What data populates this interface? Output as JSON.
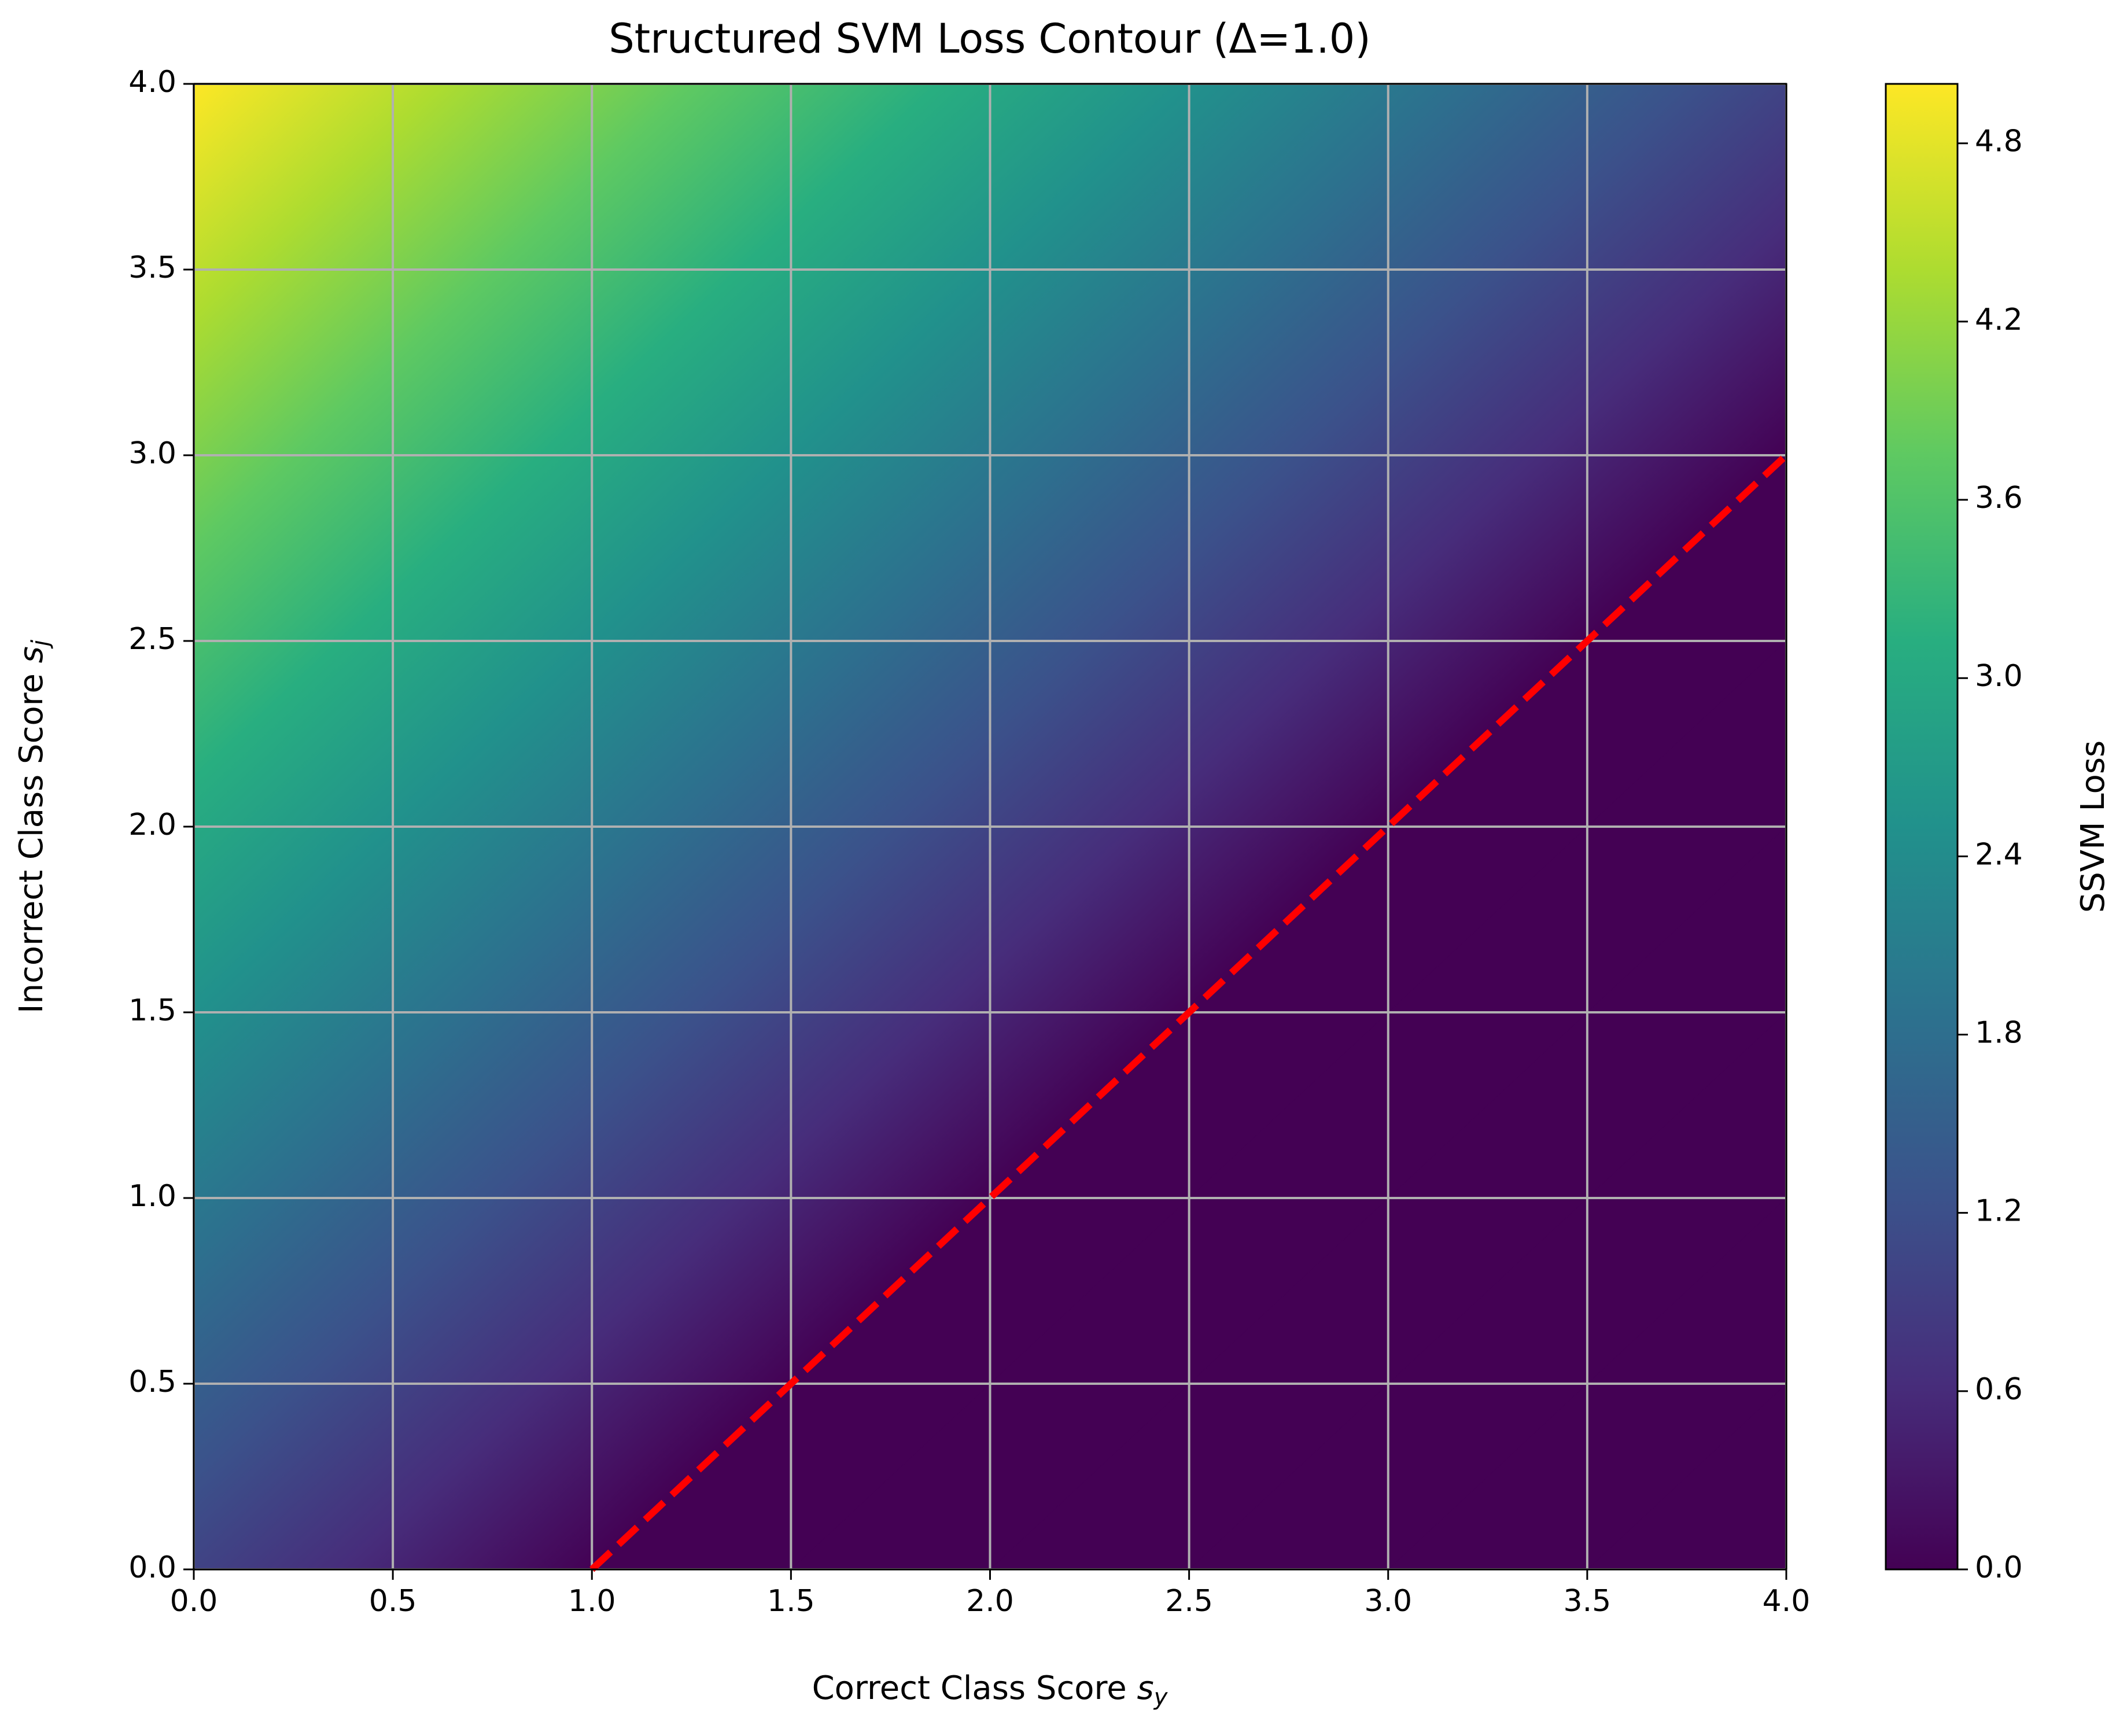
{
  "chart_data": {
    "type": "contourf",
    "title": "Structured SVM Loss Contour (Δ=1.0)",
    "xlabel": "Correct Class Score ",
    "xlabel_symbol": "s",
    "xlabel_subscript": "y",
    "ylabel": "Incorrect Class Score ",
    "ylabel_symbol": "s",
    "ylabel_subscript": "j",
    "colorbar_label": "SSVM Loss",
    "colormap": "viridis",
    "x": [
      0,
      0.5,
      1,
      1.5,
      2,
      2.5,
      3,
      3.5,
      4
    ],
    "y": [
      0,
      0.5,
      1,
      1.5,
      2,
      2.5,
      3,
      3.5,
      4
    ],
    "z": [
      [
        1,
        0.5,
        0,
        0,
        0,
        0,
        0,
        0,
        0
      ],
      [
        1.5,
        1,
        0.5,
        0,
        0,
        0,
        0,
        0,
        0
      ],
      [
        2,
        1.5,
        1,
        0.5,
        0,
        0,
        0,
        0,
        0
      ],
      [
        2.5,
        2,
        1.5,
        1,
        0.5,
        0,
        0,
        0,
        0
      ],
      [
        3,
        2.5,
        2,
        1.5,
        1,
        0.5,
        0,
        0,
        0
      ],
      [
        3.5,
        3,
        2.5,
        2,
        1.5,
        1,
        0.5,
        0,
        0
      ],
      [
        4,
        3.5,
        3,
        2.5,
        2,
        1.5,
        1,
        0.5,
        0
      ],
      [
        4.5,
        4,
        3.5,
        3,
        2.5,
        2,
        1.5,
        1,
        0.5
      ],
      [
        5,
        4.5,
        4,
        3.5,
        3,
        2.5,
        2,
        1.5,
        1
      ]
    ],
    "line": {
      "x": [
        1,
        4
      ],
      "y": [
        0,
        3
      ],
      "color": "#ff0000",
      "style": "dashed"
    },
    "xlim": [
      0,
      4
    ],
    "ylim": [
      0,
      4
    ],
    "xticks": [
      {
        "value": 0,
        "label": "0.0"
      },
      0.5,
      {
        "value": 1,
        "label": "1.0"
      },
      1.5,
      {
        "value": 2,
        "label": "2.0"
      },
      2.5,
      {
        "value": 3,
        "label": "3.0"
      },
      3.5,
      {
        "value": 4,
        "label": "4.0"
      }
    ],
    "yticks": [
      {
        "value": 0,
        "label": "0.0"
      },
      0.5,
      {
        "value": 1,
        "label": "1.0"
      },
      1.5,
      {
        "value": 2,
        "label": "2.0"
      },
      2.5,
      {
        "value": 3,
        "label": "3.0"
      },
      3.5,
      {
        "value": 4,
        "label": "4.0"
      }
    ],
    "clim": [
      0,
      5
    ],
    "cticks": [
      {
        "value": 0,
        "label": "0.0"
      },
      0.6,
      1.2,
      1.8,
      2.4,
      {
        "value": 3,
        "label": "3.0"
      },
      3.6,
      4.2,
      4.8
    ],
    "grid": true
  }
}
